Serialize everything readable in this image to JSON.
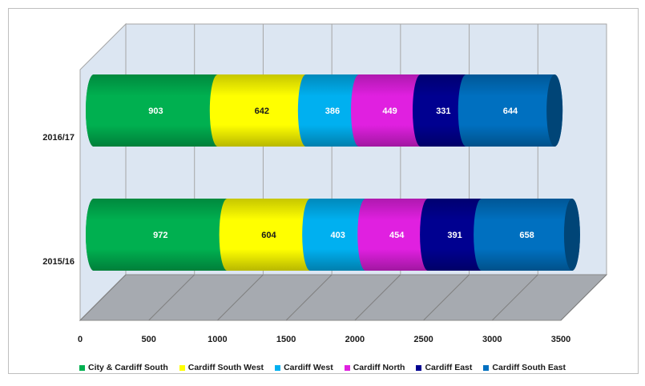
{
  "chart_data": {
    "type": "bar",
    "orientation": "horizontal",
    "stacked": true,
    "style": "3d-cylinder",
    "categories": [
      "2015/16",
      "2016/17"
    ],
    "series": [
      {
        "name": "City & Cardiff South",
        "values": [
          972,
          903
        ],
        "color": "#00B050"
      },
      {
        "name": "Cardiff South West",
        "values": [
          604,
          642
        ],
        "color": "#FFFF00"
      },
      {
        "name": "Cardiff West",
        "values": [
          403,
          386
        ],
        "color": "#00B0F0"
      },
      {
        "name": "Cardiff North",
        "values": [
          454,
          449
        ],
        "color": "#E020E0"
      },
      {
        "name": "Cardiff East",
        "values": [
          391,
          331
        ],
        "color": "#000090"
      },
      {
        "name": "Cardiff South East",
        "values": [
          658,
          644
        ],
        "color": "#0070C0"
      }
    ],
    "x_ticks": [
      "0",
      "500",
      "1000",
      "1500",
      "2000",
      "2500",
      "3000",
      "3500"
    ],
    "xlim": [
      0,
      3500
    ],
    "grid": true,
    "legend_position": "bottom",
    "data_labels": true
  }
}
